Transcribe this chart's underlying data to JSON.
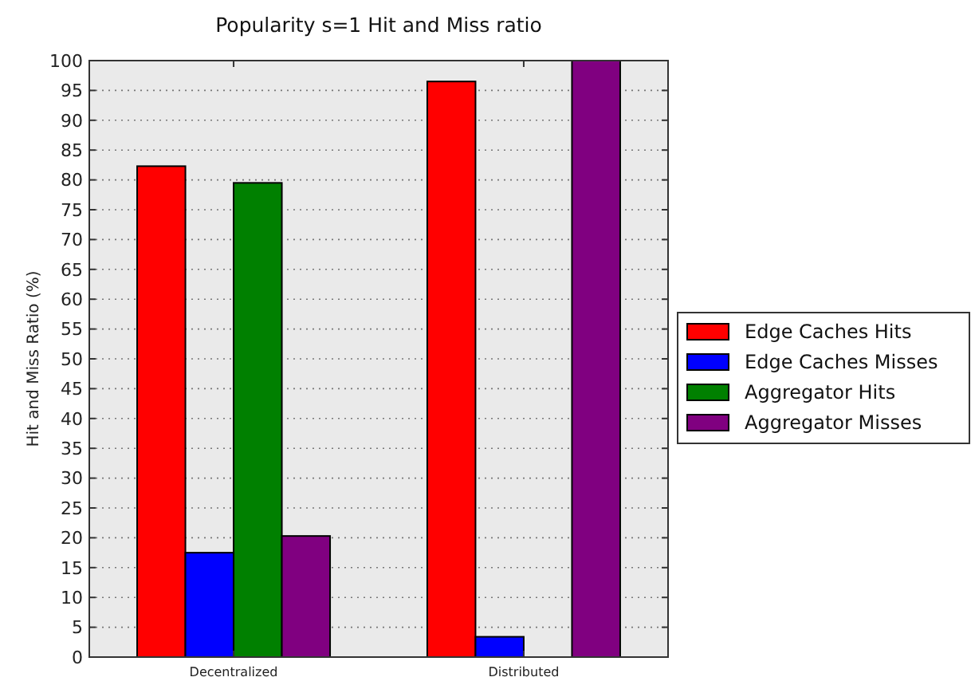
{
  "chart_data": {
    "type": "bar",
    "title": "Popularity s=1 Hit and Miss ratio",
    "ylabel": "Hit and Miss Ratio (%)",
    "categories": [
      "Decentralized",
      "Distributed"
    ],
    "series": [
      {
        "name": "Edge Caches Hits",
        "color": "#ff0000",
        "values": [
          82.3,
          96.5
        ]
      },
      {
        "name": "Edge Caches Misses",
        "color": "#0000ff",
        "values": [
          17.5,
          3.4
        ]
      },
      {
        "name": "Aggregator Hits",
        "color": "#008000",
        "values": [
          79.5,
          0
        ]
      },
      {
        "name": "Aggregator Misses",
        "color": "#800080",
        "values": [
          20.3,
          100
        ]
      }
    ],
    "ylim": [
      0,
      100
    ],
    "yticks": [
      0,
      5,
      10,
      15,
      20,
      25,
      30,
      35,
      40,
      45,
      50,
      55,
      60,
      65,
      70,
      75,
      80,
      85,
      90,
      95,
      100
    ],
    "grid": "y",
    "legend": "right"
  }
}
